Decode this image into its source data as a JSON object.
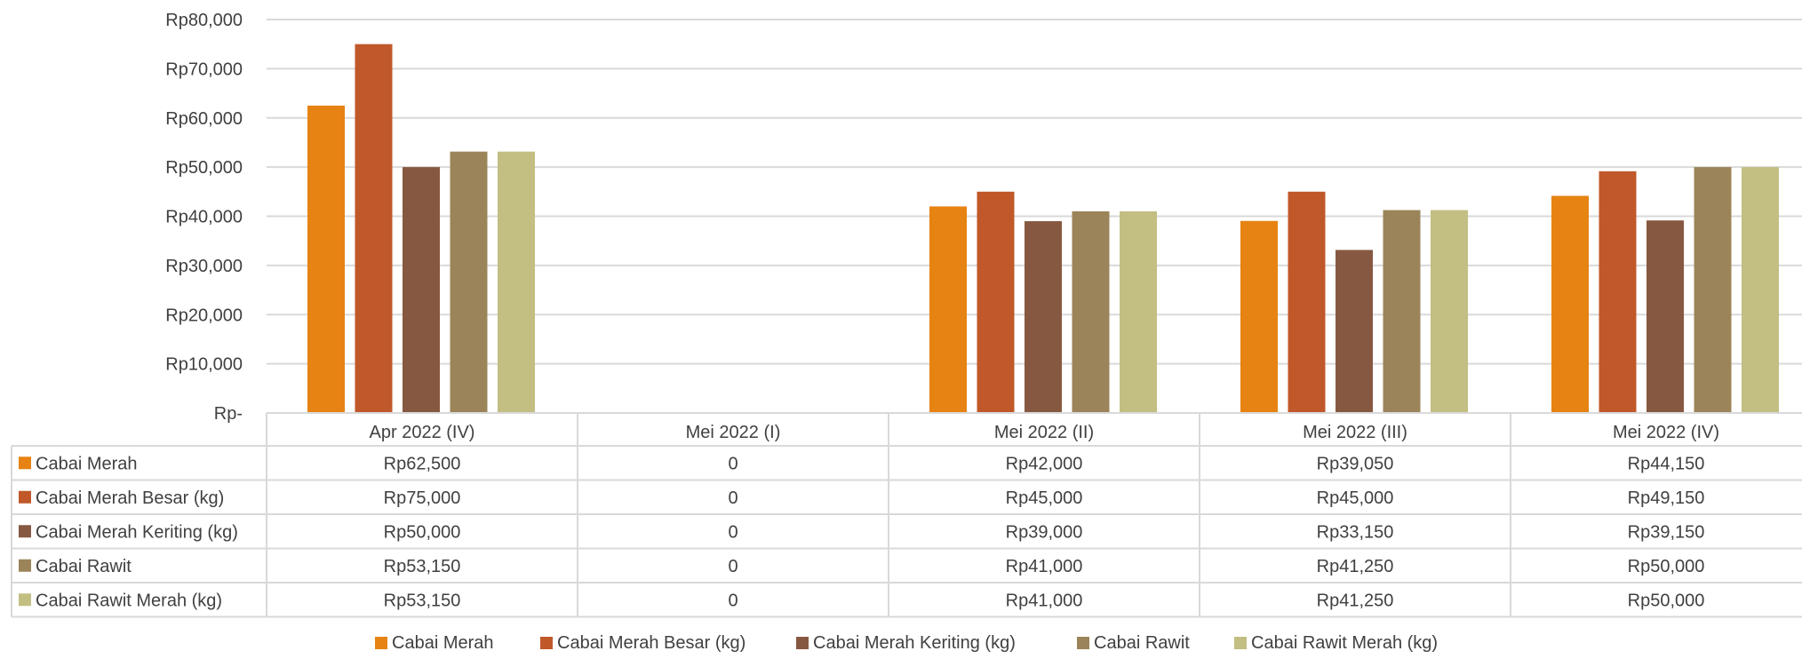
{
  "chart_data": {
    "type": "bar",
    "categories": [
      "Apr 2022 (IV)",
      "Mei 2022 (I)",
      "Mei 2022 (II)",
      "Mei 2022 (III)",
      "Mei 2022 (IV)"
    ],
    "series": [
      {
        "name": "Cabai Merah",
        "color": "#E68313",
        "values": [
          62500,
          0,
          42000,
          39050,
          44150
        ],
        "cells": [
          "Rp62,500",
          "0",
          "Rp42,000",
          "Rp39,050",
          "Rp44,150"
        ]
      },
      {
        "name": "Cabai Merah Besar (kg)",
        "color": "#C0582A",
        "values": [
          75000,
          0,
          45000,
          45000,
          49150
        ],
        "cells": [
          "Rp75,000",
          "0",
          "Rp45,000",
          "Rp45,000",
          "Rp49,150"
        ]
      },
      {
        "name": "Cabai Merah Keriting  (kg)",
        "color": "#875841",
        "values": [
          50000,
          0,
          39000,
          33150,
          39150
        ],
        "cells": [
          "Rp50,000",
          "0",
          "Rp39,000",
          "Rp33,150",
          "Rp39,150"
        ]
      },
      {
        "name": "Cabai Rawit",
        "color": "#9B8459",
        "values": [
          53150,
          0,
          41000,
          41250,
          50000
        ],
        "cells": [
          "Rp53,150",
          "0",
          "Rp41,000",
          "Rp41,250",
          "Rp50,000"
        ]
      },
      {
        "name": "Cabai Rawit Merah (kg)",
        "color": "#C3BE82",
        "values": [
          53150,
          0,
          41000,
          41250,
          50000
        ],
        "cells": [
          "Rp53,150",
          "0",
          "Rp41,000",
          "Rp41,250",
          "Rp50,000"
        ]
      }
    ],
    "y_ticks": [
      "Rp-",
      "Rp10,000",
      "Rp20,000",
      "Rp30,000",
      "Rp40,000",
      "Rp50,000",
      "Rp60,000",
      "Rp70,000",
      "Rp80,000"
    ],
    "ylim": [
      0,
      80000
    ],
    "grid": true,
    "legend_position": "bottom",
    "data_table": true
  }
}
